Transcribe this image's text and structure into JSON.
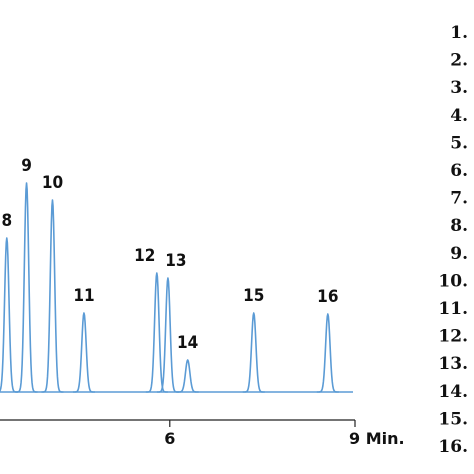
{
  "chart_data": {
    "type": "chromatogram",
    "x": [
      3.36,
      3.68,
      4.1,
      4.61,
      5.79,
      5.97,
      6.29,
      7.36,
      8.56
    ],
    "values": [
      154,
      209,
      192,
      79,
      119,
      114,
      32,
      79,
      78
    ],
    "labels": [
      "8",
      "9",
      "10",
      "11",
      "12",
      "13",
      "14",
      "15",
      "16"
    ],
    "color": "#5b9bd5",
    "xlim": [
      3.25,
      9
    ],
    "ylim": [
      0,
      250
    ],
    "xticks": [
      6,
      {
        "value": 9,
        "label": "9 Min."
      }
    ],
    "legend": [
      "1.",
      "2.",
      "3.",
      "4.",
      "5.",
      "6.",
      "7.",
      "8.",
      "9.",
      "10.",
      "11.",
      "12.",
      "13.",
      "14.",
      "15.",
      "16."
    ]
  }
}
